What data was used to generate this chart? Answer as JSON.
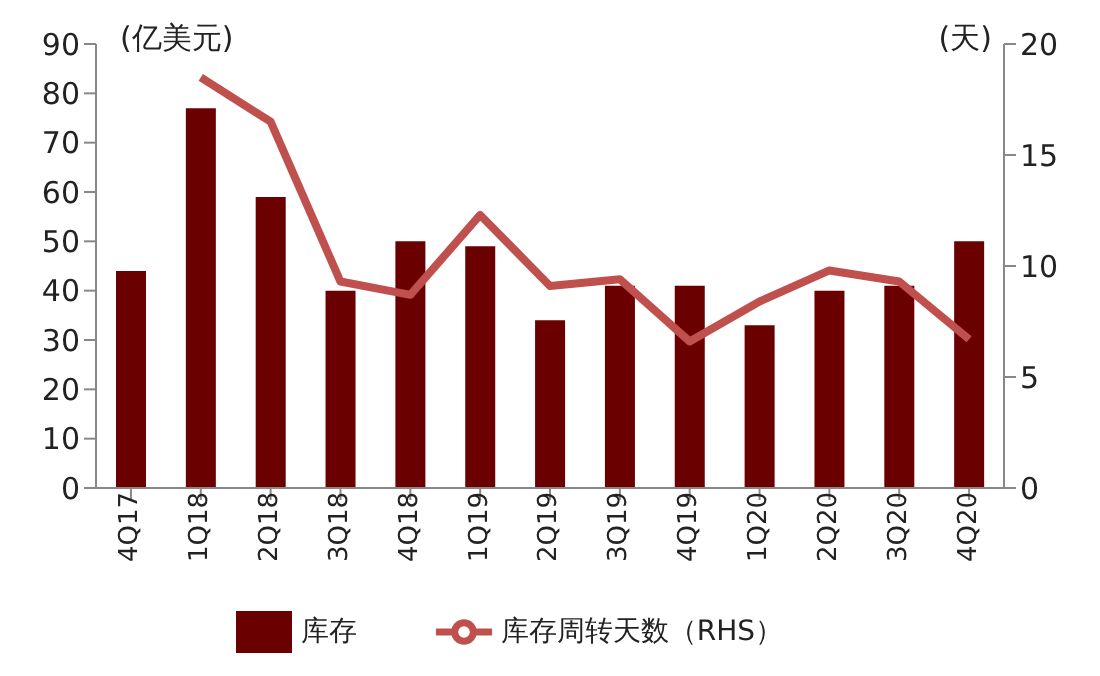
{
  "chart_data": {
    "type": "bar",
    "ylabel": "(亿美元)",
    "y2label": "(天)",
    "categories": [
      "4Q17",
      "1Q18",
      "2Q18",
      "3Q18",
      "4Q18",
      "1Q19",
      "2Q19",
      "3Q19",
      "4Q19",
      "1Q20",
      "2Q20",
      "3Q20",
      "4Q20"
    ],
    "series": [
      {
        "name": "库存",
        "color": "#6b0000",
        "values": [
          44,
          77,
          59,
          40,
          50,
          49,
          34,
          41,
          41,
          33,
          40,
          41,
          50
        ]
      },
      {
        "name": "库存周转天数（RHS）",
        "type": "line",
        "axis": "y2",
        "color": "#c0504d",
        "values": [
          null,
          18.5,
          16.5,
          9.3,
          8.7,
          12.3,
          9.1,
          9.4,
          6.6,
          8.4,
          9.8,
          9.3,
          6.7
        ]
      }
    ],
    "ylim": [
      0,
      90
    ],
    "yticks": [
      0,
      10,
      20,
      30,
      40,
      50,
      60,
      70,
      80,
      90
    ],
    "y2lim": [
      0,
      20
    ],
    "y2ticks": [
      0,
      5,
      10,
      15,
      20
    ],
    "legend": "bottom",
    "grid": false
  }
}
